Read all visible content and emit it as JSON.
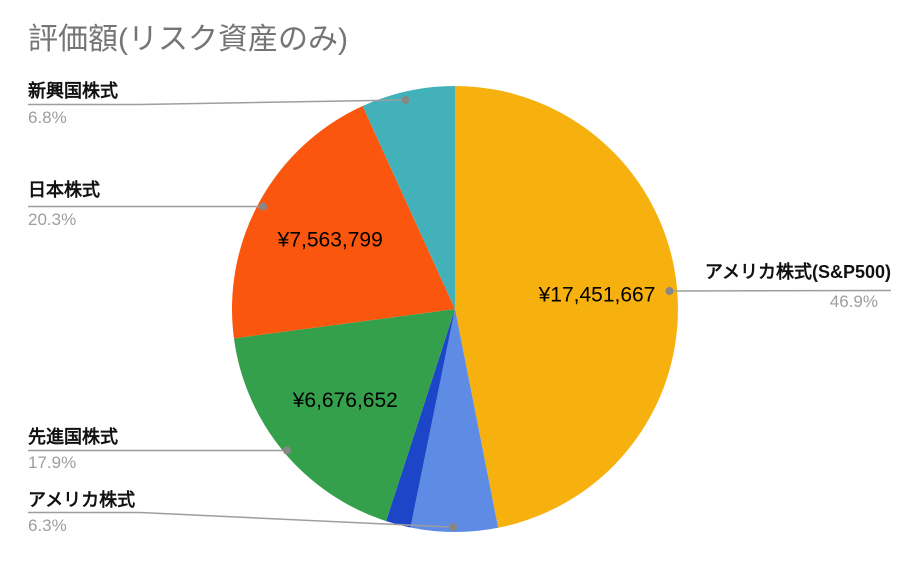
{
  "title": "評価額(リスク資産のみ)",
  "colors": {
    "background": "#ffffff",
    "title_text": "#757575",
    "label_text": "#111111",
    "percent_text": "#9e9e9e",
    "leader_line": "#9e9e9e",
    "value_text": "#000000"
  },
  "chart_data": {
    "type": "pie",
    "title": "評価額(リスク資産のみ)",
    "direction": "clockwise",
    "start_angle_deg": 0,
    "legend_position": "outside-callouts",
    "slices": [
      {
        "id": "us-sp500",
        "label": "アメリカ株式(S&P500)",
        "percent": 46.9,
        "percent_text": "46.9%",
        "value_label": "¥17,451,667",
        "color": "#F6B10E"
      },
      {
        "id": "us-stock",
        "label": "アメリカ株式",
        "percent": 6.3,
        "percent_text": "6.3%",
        "value_label": "",
        "color": "#5E8BE4"
      },
      {
        "id": "unlabeled",
        "label": "",
        "percent": 1.8,
        "percent_text": "",
        "value_label": "",
        "color": "#1C45C8"
      },
      {
        "id": "developed",
        "label": "先進国株式",
        "percent": 17.9,
        "percent_text": "17.9%",
        "value_label": "¥6,676,652",
        "color": "#35A04C"
      },
      {
        "id": "japan",
        "label": "日本株式",
        "percent": 20.3,
        "percent_text": "20.3%",
        "value_label": "¥7,563,799",
        "color": "#FB560E"
      },
      {
        "id": "emerging",
        "label": "新興国株式",
        "percent": 6.8,
        "percent_text": "6.8%",
        "value_label": "",
        "color": "#42B1BA"
      }
    ]
  }
}
